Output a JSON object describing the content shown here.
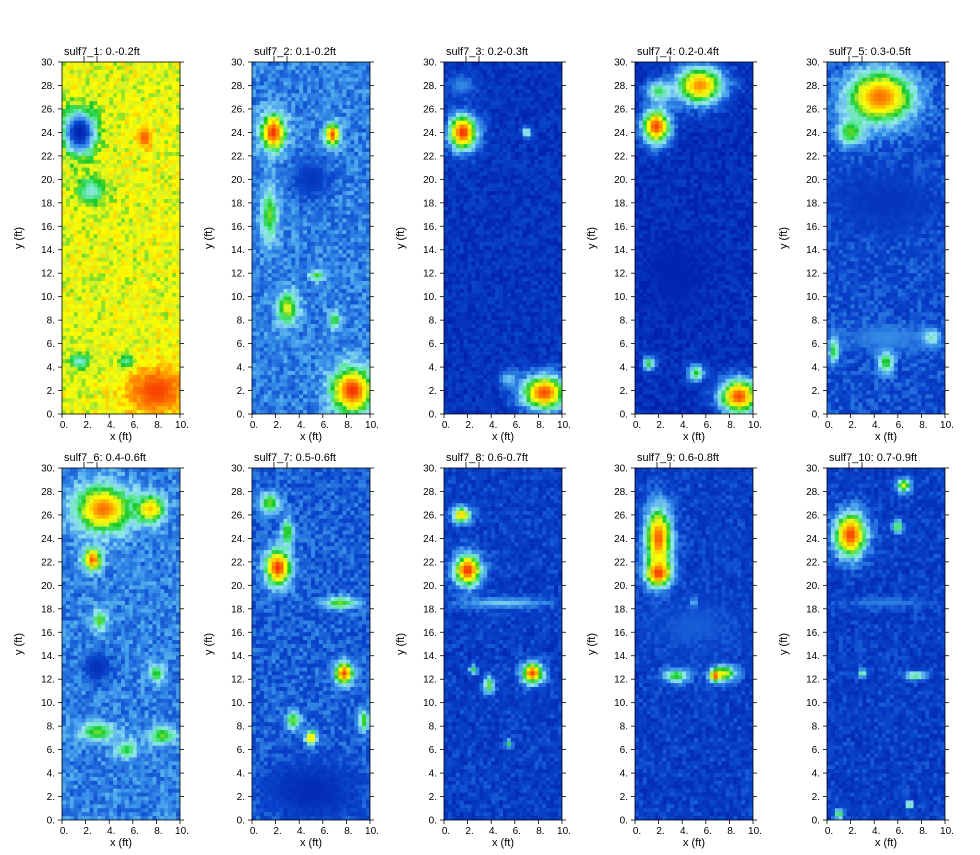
{
  "chart_data": [
    {
      "type": "heatmap",
      "title": "sulf7_1: 0.-0.2ft",
      "xlabel": "x (ft)",
      "ylabel": "y (ft)",
      "xlim": [
        0,
        10
      ],
      "ylim": [
        0,
        30
      ],
      "x_ticks": [
        "0.",
        "2.",
        "4.",
        "6.",
        "8.",
        "10."
      ],
      "y_ticks": [
        "0.",
        "2.",
        "4.",
        "6.",
        "8.",
        "10.",
        "12.",
        "14.",
        "16.",
        "18.",
        "20.",
        "22.",
        "24.",
        "26.",
        "28.",
        "30."
      ],
      "background": 0.7,
      "blobs": [
        {
          "x": 1.5,
          "y": 24.0,
          "rx": 1.6,
          "ry": 2.2,
          "v": 0.02
        },
        {
          "x": 2.5,
          "y": 19.0,
          "rx": 1.5,
          "ry": 1.5,
          "v": 0.45
        },
        {
          "x": 8.0,
          "y": 2.0,
          "rx": 3.5,
          "ry": 2.8,
          "v": 0.93
        },
        {
          "x": 7.0,
          "y": 23.5,
          "rx": 0.9,
          "ry": 1.2,
          "v": 0.9
        },
        {
          "x": 1.5,
          "y": 4.5,
          "rx": 1.2,
          "ry": 0.8,
          "v": 0.45
        },
        {
          "x": 5.5,
          "y": 4.5,
          "rx": 1.0,
          "ry": 0.8,
          "v": 0.5
        }
      ]
    },
    {
      "type": "heatmap",
      "title": "sulf7_2: 0.1-0.2ft",
      "xlabel": "x (ft)",
      "ylabel": "y (ft)",
      "xlim": [
        0,
        10
      ],
      "ylim": [
        0,
        30
      ],
      "x_ticks": [
        "0.",
        "2.",
        "4.",
        "6.",
        "8.",
        "10."
      ],
      "y_ticks": [
        "0.",
        "2.",
        "4.",
        "6.",
        "8.",
        "10.",
        "12.",
        "14.",
        "16.",
        "18.",
        "20.",
        "22.",
        "24.",
        "26.",
        "28.",
        "30."
      ],
      "background": 0.28,
      "blobs": [
        {
          "x": 1.8,
          "y": 24.0,
          "rx": 1.3,
          "ry": 2.0,
          "v": 0.95
        },
        {
          "x": 6.8,
          "y": 23.8,
          "rx": 0.8,
          "ry": 1.2,
          "v": 0.92
        },
        {
          "x": 1.5,
          "y": 17.0,
          "rx": 0.9,
          "ry": 3.0,
          "v": 0.62
        },
        {
          "x": 3.0,
          "y": 9.0,
          "rx": 1.2,
          "ry": 1.8,
          "v": 0.68
        },
        {
          "x": 8.5,
          "y": 2.0,
          "rx": 2.2,
          "ry": 2.5,
          "v": 0.95
        },
        {
          "x": 5.5,
          "y": 11.8,
          "rx": 0.8,
          "ry": 0.6,
          "v": 0.6
        },
        {
          "x": 7.0,
          "y": 8.0,
          "rx": 0.6,
          "ry": 1.0,
          "v": 0.6
        },
        {
          "x": 5.0,
          "y": 20.0,
          "rx": 2.0,
          "ry": 2.0,
          "v": 0.1
        }
      ]
    },
    {
      "type": "heatmap",
      "title": "sulf7_3: 0.2-0.3ft",
      "xlabel": "x (ft)",
      "ylabel": "y (ft)",
      "xlim": [
        0,
        10
      ],
      "ylim": [
        0,
        30
      ],
      "x_ticks": [
        "0.",
        "2.",
        "4.",
        "6.",
        "8.",
        "10."
      ],
      "y_ticks": [
        "0.",
        "2.",
        "4.",
        "6.",
        "8.",
        "10.",
        "12.",
        "14.",
        "16.",
        "18.",
        "20.",
        "22.",
        "24.",
        "26.",
        "28.",
        "30."
      ],
      "background": 0.1,
      "blobs": [
        {
          "x": 1.6,
          "y": 24.0,
          "rx": 1.6,
          "ry": 2.0,
          "v": 0.95
        },
        {
          "x": 8.5,
          "y": 1.8,
          "rx": 2.5,
          "ry": 2.0,
          "v": 0.92
        },
        {
          "x": 7.0,
          "y": 24.0,
          "rx": 0.5,
          "ry": 0.6,
          "v": 0.55
        },
        {
          "x": 1.5,
          "y": 28.0,
          "rx": 1.5,
          "ry": 1.2,
          "v": 0.3
        },
        {
          "x": 5.5,
          "y": 3.0,
          "rx": 1.0,
          "ry": 0.9,
          "v": 0.4
        }
      ]
    },
    {
      "type": "heatmap",
      "title": "sulf7_4: 0.2-0.4ft",
      "xlabel": "x (ft)",
      "ylabel": "y (ft)",
      "xlim": [
        0,
        10
      ],
      "ylim": [
        0,
        30
      ],
      "x_ticks": [
        "0.",
        "2.",
        "4.",
        "6.",
        "8.",
        "10."
      ],
      "y_ticks": [
        "0.",
        "2.",
        "4.",
        "6.",
        "8.",
        "10.",
        "12.",
        "14.",
        "16.",
        "18.",
        "20.",
        "22.",
        "24.",
        "26.",
        "28.",
        "30."
      ],
      "background": 0.08,
      "blobs": [
        {
          "x": 1.8,
          "y": 24.5,
          "rx": 1.6,
          "ry": 2.0,
          "v": 0.93
        },
        {
          "x": 5.5,
          "y": 28.0,
          "rx": 2.8,
          "ry": 2.2,
          "v": 0.85
        },
        {
          "x": 2.0,
          "y": 27.5,
          "rx": 1.5,
          "ry": 1.2,
          "v": 0.55
        },
        {
          "x": 8.8,
          "y": 1.5,
          "rx": 2.2,
          "ry": 2.0,
          "v": 0.92
        },
        {
          "x": 1.2,
          "y": 4.3,
          "rx": 0.7,
          "ry": 0.8,
          "v": 0.58
        },
        {
          "x": 5.2,
          "y": 3.5,
          "rx": 0.9,
          "ry": 1.0,
          "v": 0.58
        },
        {
          "x": 3.5,
          "y": 12.0,
          "rx": 3.0,
          "ry": 4.0,
          "v": 0.02
        }
      ]
    },
    {
      "type": "heatmap",
      "title": "sulf7_5: 0.3-0.5ft",
      "xlabel": "x (ft)",
      "ylabel": "y (ft)",
      "xlim": [
        0,
        10
      ],
      "ylim": [
        0,
        30
      ],
      "x_ticks": [
        "0.",
        "2.",
        "4.",
        "6.",
        "8.",
        "10."
      ],
      "y_ticks": [
        "0.",
        "2.",
        "4.",
        "6.",
        "8.",
        "10.",
        "12.",
        "14.",
        "16.",
        "18.",
        "20.",
        "22.",
        "24.",
        "26.",
        "28.",
        "30."
      ],
      "background": 0.18,
      "blobs": [
        {
          "x": 4.5,
          "y": 27.0,
          "rx": 3.8,
          "ry": 3.0,
          "v": 0.88
        },
        {
          "x": 2.0,
          "y": 24.0,
          "rx": 1.5,
          "ry": 1.5,
          "v": 0.62
        },
        {
          "x": 5.0,
          "y": 4.5,
          "rx": 0.9,
          "ry": 1.3,
          "v": 0.62
        },
        {
          "x": 8.8,
          "y": 6.5,
          "rx": 1.0,
          "ry": 0.9,
          "v": 0.6
        },
        {
          "x": 0.6,
          "y": 5.5,
          "rx": 0.6,
          "ry": 1.5,
          "v": 0.62
        },
        {
          "x": 5.0,
          "y": 6.5,
          "rx": 5.0,
          "ry": 1.5,
          "v": 0.3
        },
        {
          "x": 5.0,
          "y": 18.0,
          "rx": 5.0,
          "ry": 3.0,
          "v": 0.1
        }
      ]
    },
    {
      "type": "heatmap",
      "title": "sulf7_6: 0.4-0.6ft",
      "xlabel": "x (ft)",
      "ylabel": "y (ft)",
      "xlim": [
        0,
        10
      ],
      "ylim": [
        0,
        30
      ],
      "x_ticks": [
        "0.",
        "2.",
        "4.",
        "6.",
        "8.",
        "10."
      ],
      "y_ticks": [
        "0.",
        "2.",
        "4.",
        "6.",
        "8.",
        "10.",
        "12.",
        "14.",
        "16.",
        "18.",
        "20.",
        "22.",
        "24.",
        "26.",
        "28.",
        "30."
      ],
      "background": 0.28,
      "blobs": [
        {
          "x": 3.5,
          "y": 26.5,
          "rx": 3.0,
          "ry": 2.5,
          "v": 0.88
        },
        {
          "x": 2.6,
          "y": 22.2,
          "rx": 1.0,
          "ry": 1.2,
          "v": 0.9
        },
        {
          "x": 7.5,
          "y": 26.5,
          "rx": 1.5,
          "ry": 1.5,
          "v": 0.8
        },
        {
          "x": 3.2,
          "y": 17.0,
          "rx": 0.8,
          "ry": 1.2,
          "v": 0.62
        },
        {
          "x": 8.0,
          "y": 12.5,
          "rx": 0.8,
          "ry": 1.0,
          "v": 0.6
        },
        {
          "x": 3.0,
          "y": 7.5,
          "rx": 2.0,
          "ry": 1.0,
          "v": 0.62
        },
        {
          "x": 8.5,
          "y": 7.2,
          "rx": 1.5,
          "ry": 1.0,
          "v": 0.62
        },
        {
          "x": 5.5,
          "y": 6.0,
          "rx": 1.2,
          "ry": 1.0,
          "v": 0.58
        },
        {
          "x": 3.0,
          "y": 13.0,
          "rx": 1.5,
          "ry": 1.5,
          "v": 0.08
        }
      ]
    },
    {
      "type": "heatmap",
      "title": "sulf7_7: 0.5-0.6ft",
      "xlabel": "x (ft)",
      "ylabel": "y (ft)",
      "xlim": [
        0,
        10
      ],
      "ylim": [
        0,
        30
      ],
      "x_ticks": [
        "0.",
        "2.",
        "4.",
        "6.",
        "8.",
        "10."
      ],
      "y_ticks": [
        "0.",
        "2.",
        "4.",
        "6.",
        "8.",
        "10.",
        "12.",
        "14.",
        "16.",
        "18.",
        "20.",
        "22.",
        "24.",
        "26.",
        "28.",
        "30."
      ],
      "background": 0.22,
      "blobs": [
        {
          "x": 2.2,
          "y": 21.5,
          "rx": 1.4,
          "ry": 2.0,
          "v": 0.95
        },
        {
          "x": 1.5,
          "y": 27.0,
          "rx": 1.2,
          "ry": 1.2,
          "v": 0.62
        },
        {
          "x": 3.0,
          "y": 24.5,
          "rx": 0.7,
          "ry": 1.5,
          "v": 0.62
        },
        {
          "x": 7.8,
          "y": 12.5,
          "rx": 1.0,
          "ry": 1.2,
          "v": 0.92
        },
        {
          "x": 7.5,
          "y": 18.5,
          "rx": 1.8,
          "ry": 0.7,
          "v": 0.62
        },
        {
          "x": 3.5,
          "y": 8.5,
          "rx": 0.8,
          "ry": 1.0,
          "v": 0.62
        },
        {
          "x": 5.0,
          "y": 7.0,
          "rx": 0.6,
          "ry": 0.8,
          "v": 0.85
        },
        {
          "x": 9.5,
          "y": 8.5,
          "rx": 0.6,
          "ry": 1.2,
          "v": 0.6
        },
        {
          "x": 5.0,
          "y": 2.5,
          "rx": 5.0,
          "ry": 3.0,
          "v": 0.06
        }
      ]
    },
    {
      "type": "heatmap",
      "title": "sulf7_8: 0.6-0.7ft",
      "xlabel": "x (ft)",
      "ylabel": "y (ft)",
      "xlim": [
        0,
        10
      ],
      "ylim": [
        0,
        30
      ],
      "x_ticks": [
        "0.",
        "2.",
        "4.",
        "6.",
        "8.",
        "10."
      ],
      "y_ticks": [
        "0.",
        "2.",
        "4.",
        "6.",
        "8.",
        "10.",
        "12.",
        "14.",
        "16.",
        "18.",
        "20.",
        "22.",
        "24.",
        "26.",
        "28.",
        "30."
      ],
      "background": 0.14,
      "blobs": [
        {
          "x": 2.0,
          "y": 21.3,
          "rx": 1.5,
          "ry": 1.8,
          "v": 0.95
        },
        {
          "x": 1.5,
          "y": 26.0,
          "rx": 1.0,
          "ry": 0.9,
          "v": 0.8
        },
        {
          "x": 7.5,
          "y": 12.5,
          "rx": 1.2,
          "ry": 1.2,
          "v": 0.92
        },
        {
          "x": 3.8,
          "y": 11.5,
          "rx": 0.6,
          "ry": 1.0,
          "v": 0.62
        },
        {
          "x": 5.0,
          "y": 18.5,
          "rx": 5.0,
          "ry": 0.6,
          "v": 0.4
        },
        {
          "x": 2.5,
          "y": 12.8,
          "rx": 0.5,
          "ry": 0.5,
          "v": 0.55
        },
        {
          "x": 5.5,
          "y": 6.5,
          "rx": 0.4,
          "ry": 0.5,
          "v": 0.55
        }
      ]
    },
    {
      "type": "heatmap",
      "title": "sulf7_9: 0.6-0.8ft",
      "xlabel": "x (ft)",
      "ylabel": "y (ft)",
      "xlim": [
        0,
        10
      ],
      "ylim": [
        0,
        30
      ],
      "x_ticks": [
        "0.",
        "2.",
        "4.",
        "6.",
        "8.",
        "10."
      ],
      "y_ticks": [
        "0.",
        "2.",
        "4.",
        "6.",
        "8.",
        "10.",
        "12.",
        "14.",
        "16.",
        "18.",
        "20.",
        "22.",
        "24.",
        "26.",
        "28.",
        "30."
      ],
      "background": 0.14,
      "blobs": [
        {
          "x": 2.0,
          "y": 24.0,
          "rx": 1.5,
          "ry": 3.5,
          "v": 0.9
        },
        {
          "x": 2.0,
          "y": 21.0,
          "rx": 1.4,
          "ry": 1.5,
          "v": 0.95
        },
        {
          "x": 3.5,
          "y": 12.3,
          "rx": 1.5,
          "ry": 0.8,
          "v": 0.62
        },
        {
          "x": 7.5,
          "y": 12.5,
          "rx": 1.5,
          "ry": 0.9,
          "v": 0.72
        },
        {
          "x": 6.8,
          "y": 12.3,
          "rx": 0.5,
          "ry": 0.6,
          "v": 0.95
        },
        {
          "x": 5.0,
          "y": 18.5,
          "rx": 0.4,
          "ry": 0.5,
          "v": 0.55
        },
        {
          "x": 5.0,
          "y": 16.5,
          "rx": 5.0,
          "ry": 3.0,
          "v": 0.22
        }
      ]
    },
    {
      "type": "heatmap",
      "title": "sulf7_10: 0.7-0.9ft",
      "xlabel": "x (ft)",
      "ylabel": "y (ft)",
      "xlim": [
        0,
        10
      ],
      "ylim": [
        0,
        30
      ],
      "x_ticks": [
        "0.",
        "2.",
        "4.",
        "6.",
        "8.",
        "10."
      ],
      "y_ticks": [
        "0.",
        "2.",
        "4.",
        "6.",
        "8.",
        "10.",
        "12.",
        "14.",
        "16.",
        "18.",
        "20.",
        "22.",
        "24.",
        "26.",
        "28.",
        "30."
      ],
      "background": 0.14,
      "blobs": [
        {
          "x": 2.0,
          "y": 24.3,
          "rx": 1.8,
          "ry": 2.5,
          "v": 0.93
        },
        {
          "x": 6.5,
          "y": 28.5,
          "rx": 0.8,
          "ry": 0.8,
          "v": 0.7
        },
        {
          "x": 6.0,
          "y": 25.0,
          "rx": 0.6,
          "ry": 0.7,
          "v": 0.6
        },
        {
          "x": 3.0,
          "y": 12.5,
          "rx": 0.5,
          "ry": 0.5,
          "v": 0.55
        },
        {
          "x": 7.5,
          "y": 12.3,
          "rx": 1.2,
          "ry": 0.5,
          "v": 0.55
        },
        {
          "x": 7.0,
          "y": 1.3,
          "rx": 0.4,
          "ry": 0.4,
          "v": 0.62
        },
        {
          "x": 1.0,
          "y": 0.5,
          "rx": 0.5,
          "ry": 0.6,
          "v": 0.6
        },
        {
          "x": 5.0,
          "y": 18.5,
          "rx": 5.0,
          "ry": 0.6,
          "v": 0.28
        }
      ]
    }
  ]
}
